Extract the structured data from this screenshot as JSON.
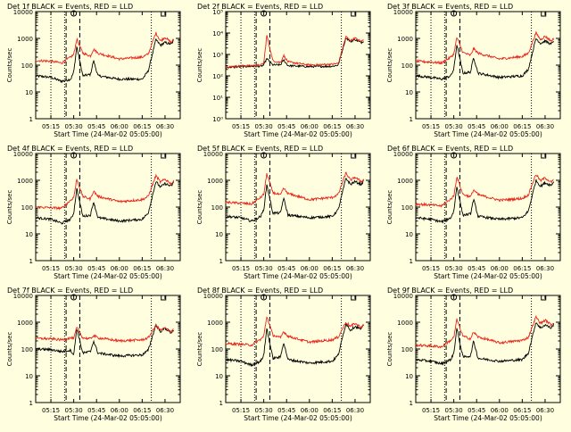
{
  "page": {
    "background": "#ffffe0",
    "colors": {
      "events": "#000000",
      "lld": "#e8261a",
      "axes": "#000000"
    }
  },
  "common": {
    "xlabel": "Start Time (24-Mar-02 05:05:00)",
    "ylabel": "Counts/sec",
    "x_tick_labels": [
      "05:15",
      "05:30",
      "05:45",
      "06:00",
      "06:15",
      "06:30"
    ],
    "y_tick_labels_standard": [
      "1",
      "10",
      "100",
      "1000",
      "10000"
    ],
    "y_tick_labels_det2": [
      "10⁰",
      "10¹",
      "10²",
      "10³",
      "10⁴",
      "10⁵"
    ],
    "markers": {
      "circle": "O",
      "square": "□"
    }
  },
  "chart_data": [
    {
      "type": "line",
      "title": "Det 1f BLACK = Events, RED = LLD",
      "ylabel": "Counts/sec",
      "xlabel": "Start Time (24-Mar-02 05:05:00)",
      "ylim": [
        1,
        10000
      ],
      "yscale": "log",
      "series": [
        {
          "name": "Events",
          "color": "#000000",
          "x": [
            "05:05",
            "05:15",
            "05:22",
            "05:28",
            "05:30",
            "05:32",
            "05:36",
            "05:41",
            "05:43",
            "05:46",
            "06:00",
            "06:15",
            "06:19",
            "06:24",
            "06:27",
            "06:30",
            "06:34",
            "06:36"
          ],
          "y": [
            40,
            35,
            25,
            30,
            55,
            500,
            40,
            45,
            150,
            40,
            30,
            30,
            60,
            900,
            550,
            700,
            600,
            900
          ]
        },
        {
          "name": "LLD",
          "color": "#e8261a",
          "x": [
            "05:05",
            "05:15",
            "05:22",
            "05:28",
            "05:30",
            "05:32",
            "05:36",
            "05:41",
            "05:43",
            "05:46",
            "06:00",
            "06:15",
            "06:19",
            "06:24",
            "06:27",
            "06:30",
            "06:34",
            "06:36"
          ],
          "y": [
            150,
            140,
            120,
            200,
            250,
            950,
            280,
            220,
            400,
            280,
            170,
            200,
            260,
            1600,
            800,
            1100,
            700,
            950
          ]
        }
      ]
    },
    {
      "type": "line",
      "title": "Det 2f BLACK = Events, RED = LLD",
      "ylabel": "Counts/sec",
      "xlabel": "Start Time (24-Mar-02 05:05:00)",
      "ylim": [
        1,
        100000
      ],
      "yscale": "log",
      "series": [
        {
          "name": "Events",
          "color": "#000000",
          "x": [
            "05:05",
            "05:15",
            "05:22",
            "05:28",
            "05:30",
            "05:32",
            "05:36",
            "05:41",
            "05:43",
            "05:46",
            "06:00",
            "06:15",
            "06:19",
            "06:24",
            "06:27",
            "06:30",
            "06:34",
            "06:36"
          ],
          "y": [
            250,
            270,
            280,
            280,
            320,
            650,
            320,
            330,
            550,
            300,
            270,
            280,
            320,
            6000,
            4000,
            5000,
            3500,
            4500
          ]
        },
        {
          "name": "LLD",
          "color": "#e8261a",
          "x": [
            "05:05",
            "05:15",
            "05:22",
            "05:28",
            "05:30",
            "05:32",
            "05:36",
            "05:41",
            "05:43",
            "05:46",
            "06:00",
            "06:15",
            "06:19",
            "06:24",
            "06:27",
            "06:30",
            "06:34",
            "06:36"
          ],
          "y": [
            260,
            290,
            300,
            320,
            400,
            8000,
            500,
            420,
            900,
            450,
            320,
            350,
            380,
            6800,
            4500,
            5800,
            4000,
            5000
          ]
        }
      ]
    },
    {
      "type": "line",
      "title": "Det 3f BLACK = Events, RED = LLD",
      "ylabel": "Counts/sec",
      "xlabel": "Start Time (24-Mar-02 05:05:00)",
      "ylim": [
        1,
        10000
      ],
      "yscale": "log",
      "series": [
        {
          "name": "Events",
          "color": "#000000",
          "x": [
            "05:05",
            "05:15",
            "05:22",
            "05:28",
            "05:30",
            "05:32",
            "05:36",
            "05:41",
            "05:43",
            "05:46",
            "06:00",
            "06:15",
            "06:19",
            "06:24",
            "06:27",
            "06:30",
            "06:34",
            "06:36"
          ],
          "y": [
            40,
            35,
            30,
            40,
            70,
            600,
            50,
            55,
            200,
            50,
            35,
            40,
            70,
            1000,
            650,
            800,
            600,
            900
          ]
        },
        {
          "name": "LLD",
          "color": "#e8261a",
          "x": [
            "05:05",
            "05:15",
            "05:22",
            "05:28",
            "05:30",
            "05:32",
            "05:36",
            "05:41",
            "05:43",
            "05:46",
            "06:00",
            "06:15",
            "06:19",
            "06:24",
            "06:27",
            "06:30",
            "06:34",
            "06:36"
          ],
          "y": [
            140,
            130,
            120,
            200,
            260,
            1100,
            300,
            230,
            420,
            280,
            170,
            210,
            280,
            1600,
            900,
            1200,
            800,
            1000
          ]
        }
      ]
    },
    {
      "type": "line",
      "title": "Det 4f BLACK = Events, RED = LLD",
      "ylabel": "Counts/sec",
      "xlabel": "Start Time (24-Mar-02 05:05:00)",
      "ylim": [
        1,
        10000
      ],
      "yscale": "log",
      "series": [
        {
          "name": "Events",
          "color": "#000000",
          "x": [
            "05:05",
            "05:15",
            "05:22",
            "05:28",
            "05:30",
            "05:32",
            "05:36",
            "05:41",
            "05:43",
            "05:46",
            "06:00",
            "06:15",
            "06:19",
            "06:24",
            "06:27",
            "06:30",
            "06:34",
            "06:36"
          ],
          "y": [
            40,
            35,
            25,
            35,
            60,
            500,
            45,
            50,
            160,
            40,
            30,
            35,
            60,
            900,
            550,
            750,
            600,
            900
          ]
        },
        {
          "name": "LLD",
          "color": "#e8261a",
          "x": [
            "05:05",
            "05:15",
            "05:22",
            "05:28",
            "05:30",
            "05:32",
            "05:36",
            "05:41",
            "05:43",
            "05:46",
            "06:00",
            "06:15",
            "06:19",
            "06:24",
            "06:27",
            "06:30",
            "06:34",
            "06:36"
          ],
          "y": [
            100,
            95,
            90,
            180,
            230,
            1100,
            250,
            200,
            400,
            250,
            160,
            190,
            250,
            1500,
            850,
            1100,
            750,
            950
          ]
        }
      ]
    },
    {
      "type": "line",
      "title": "Det 5f BLACK = Events, RED = LLD",
      "ylabel": "Counts/sec",
      "xlabel": "Start Time (24-Mar-02 05:05:00)",
      "ylim": [
        1,
        10000
      ],
      "yscale": "log",
      "series": [
        {
          "name": "Events",
          "color": "#000000",
          "x": [
            "05:05",
            "05:15",
            "05:22",
            "05:28",
            "05:30",
            "05:32",
            "05:36",
            "05:41",
            "05:43",
            "05:46",
            "06:00",
            "06:15",
            "06:19",
            "06:24",
            "06:27",
            "06:30",
            "06:34",
            "06:36"
          ],
          "y": [
            45,
            40,
            30,
            45,
            80,
            700,
            60,
            60,
            220,
            50,
            40,
            45,
            80,
            1200,
            700,
            900,
            700,
            1000
          ]
        },
        {
          "name": "LLD",
          "color": "#e8261a",
          "x": [
            "05:05",
            "05:15",
            "05:22",
            "05:28",
            "05:30",
            "05:32",
            "05:36",
            "05:41",
            "05:43",
            "05:46",
            "06:00",
            "06:15",
            "06:19",
            "06:24",
            "06:27",
            "06:30",
            "06:34",
            "06:36"
          ],
          "y": [
            150,
            140,
            130,
            230,
            300,
            1800,
            350,
            280,
            500,
            320,
            190,
            230,
            300,
            1900,
            1000,
            1300,
            900,
            1100
          ]
        }
      ]
    },
    {
      "type": "line",
      "title": "Det 6f BLACK = Events, RED = LLD",
      "ylabel": "Counts/sec",
      "xlabel": "Start Time (24-Mar-02 05:05:00)",
      "ylim": [
        1,
        10000
      ],
      "yscale": "log",
      "series": [
        {
          "name": "Events",
          "color": "#000000",
          "x": [
            "05:05",
            "05:15",
            "05:22",
            "05:28",
            "05:30",
            "05:32",
            "05:36",
            "05:41",
            "05:43",
            "05:46",
            "06:00",
            "06:15",
            "06:19",
            "06:24",
            "06:27",
            "06:30",
            "06:34",
            "06:36"
          ],
          "y": [
            40,
            35,
            28,
            40,
            70,
            600,
            50,
            55,
            200,
            45,
            35,
            40,
            70,
            1000,
            600,
            800,
            650,
            950
          ]
        },
        {
          "name": "LLD",
          "color": "#e8261a",
          "x": [
            "05:05",
            "05:15",
            "05:22",
            "05:28",
            "05:30",
            "05:32",
            "05:36",
            "05:41",
            "05:43",
            "05:46",
            "06:00",
            "06:15",
            "06:19",
            "06:24",
            "06:27",
            "06:30",
            "06:34",
            "06:36"
          ],
          "y": [
            130,
            120,
            110,
            200,
            260,
            1400,
            300,
            240,
            450,
            290,
            180,
            210,
            280,
            1700,
            950,
            1250,
            850,
            1050
          ]
        }
      ]
    },
    {
      "type": "line",
      "title": "Det 7f BLACK = Events, RED = LLD",
      "ylabel": "Counts/sec",
      "xlabel": "Start Time (24-Mar-02 05:05:00)",
      "ylim": [
        1,
        10000
      ],
      "yscale": "log",
      "series": [
        {
          "name": "Events",
          "color": "#000000",
          "x": [
            "05:05",
            "05:15",
            "05:22",
            "05:28",
            "05:30",
            "05:32",
            "05:36",
            "05:41",
            "05:43",
            "05:46",
            "06:00",
            "06:15",
            "06:19",
            "06:24",
            "06:27",
            "06:30",
            "06:34",
            "06:36"
          ],
          "y": [
            100,
            95,
            80,
            90,
            60,
            600,
            70,
            80,
            200,
            70,
            55,
            60,
            90,
            800,
            450,
            600,
            400,
            550
          ]
        },
        {
          "name": "LLD",
          "color": "#e8261a",
          "x": [
            "05:05",
            "05:15",
            "05:22",
            "05:28",
            "05:30",
            "05:32",
            "05:36",
            "05:41",
            "05:43",
            "05:46",
            "06:00",
            "06:15",
            "06:19",
            "06:24",
            "06:27",
            "06:30",
            "06:34",
            "06:36"
          ],
          "y": [
            250,
            240,
            220,
            260,
            240,
            650,
            260,
            240,
            320,
            260,
            200,
            220,
            260,
            750,
            500,
            600,
            450,
            600
          ]
        }
      ]
    },
    {
      "type": "line",
      "title": "Det 8f BLACK = Events, RED = LLD",
      "ylabel": "Counts/sec",
      "xlabel": "Start Time (24-Mar-02 05:05:00)",
      "ylim": [
        1,
        10000
      ],
      "yscale": "log",
      "series": [
        {
          "name": "Events",
          "color": "#000000",
          "x": [
            "05:05",
            "05:15",
            "05:22",
            "05:28",
            "05:30",
            "05:32",
            "05:36",
            "05:41",
            "05:43",
            "05:46",
            "06:00",
            "06:15",
            "06:19",
            "06:24",
            "06:27",
            "06:30",
            "06:34",
            "06:36"
          ],
          "y": [
            40,
            35,
            25,
            35,
            60,
            600,
            45,
            50,
            180,
            40,
            30,
            35,
            60,
            900,
            500,
            700,
            550,
            850
          ]
        },
        {
          "name": "LLD",
          "color": "#e8261a",
          "x": [
            "05:05",
            "05:15",
            "05:22",
            "05:28",
            "05:30",
            "05:32",
            "05:36",
            "05:41",
            "05:43",
            "05:46",
            "06:00",
            "06:15",
            "06:19",
            "06:24",
            "06:27",
            "06:30",
            "06:34",
            "06:36"
          ],
          "y": [
            160,
            150,
            140,
            230,
            300,
            1700,
            330,
            260,
            450,
            300,
            180,
            220,
            280,
            1000,
            700,
            900,
            650,
            800
          ]
        }
      ]
    },
    {
      "type": "line",
      "title": "Det 9f BLACK = Events, RED = LLD",
      "ylabel": "Counts/sec",
      "xlabel": "Start Time (24-Mar-02 05:05:00)",
      "ylim": [
        1,
        10000
      ],
      "yscale": "log",
      "series": [
        {
          "name": "Events",
          "color": "#000000",
          "x": [
            "05:05",
            "05:15",
            "05:22",
            "05:28",
            "05:30",
            "05:32",
            "05:36",
            "05:41",
            "05:43",
            "05:46",
            "06:00",
            "06:15",
            "06:19",
            "06:24",
            "06:27",
            "06:30",
            "06:34",
            "06:36"
          ],
          "y": [
            40,
            35,
            28,
            40,
            70,
            600,
            50,
            55,
            200,
            45,
            35,
            40,
            70,
            1000,
            600,
            800,
            600,
            900
          ]
        },
        {
          "name": "LLD",
          "color": "#e8261a",
          "x": [
            "05:05",
            "05:15",
            "05:22",
            "05:28",
            "05:30",
            "05:32",
            "05:36",
            "05:41",
            "05:43",
            "05:46",
            "06:00",
            "06:15",
            "06:19",
            "06:24",
            "06:27",
            "06:30",
            "06:34",
            "06:36"
          ],
          "y": [
            140,
            130,
            120,
            210,
            270,
            1300,
            300,
            240,
            430,
            280,
            170,
            210,
            270,
            1600,
            900,
            1200,
            800,
            1000
          ]
        }
      ]
    }
  ]
}
